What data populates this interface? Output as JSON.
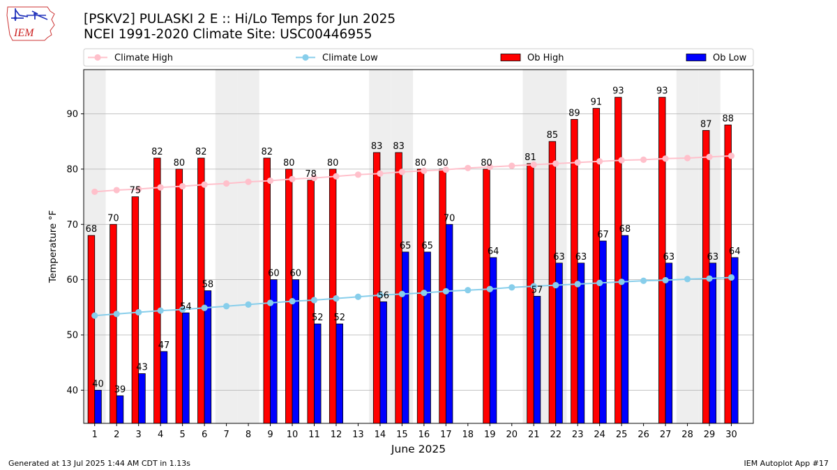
{
  "header": {
    "title_line1": "[PSKV2] PULASKI 2 E :: Hi/Lo Temps for Jun 2025",
    "title_line2": "NCEI 1991-2020 Climate Site: USC00446955"
  },
  "logo": {
    "text": "IEM",
    "icon": "iem-iowa-logo"
  },
  "footer": {
    "left": "Generated at 13 Jul 2025 1:44 AM CDT in 1.13s",
    "right": "IEM Autoplot App #17"
  },
  "colors": {
    "ob_high": "#ff0000",
    "ob_low": "#0000ff",
    "climate_high": "#ffc0cb",
    "climate_low": "#87ceeb",
    "weekend_shade": "#eeeeee",
    "grid": "#b0b0b0"
  },
  "chart_data": {
    "type": "bar",
    "xlabel": "June 2025",
    "ylabel": "Temperature °F",
    "ylim": [
      34,
      98
    ],
    "yticks": [
      40,
      50,
      60,
      70,
      80,
      90
    ],
    "grid": "horizontal",
    "legend_position": "top",
    "categories": [
      "1",
      "2",
      "3",
      "4",
      "5",
      "6",
      "7",
      "8",
      "9",
      "10",
      "11",
      "12",
      "13",
      "14",
      "15",
      "16",
      "17",
      "18",
      "19",
      "20",
      "21",
      "22",
      "23",
      "24",
      "25",
      "26",
      "27",
      "28",
      "29",
      "30"
    ],
    "shaded_days": [
      1,
      7,
      8,
      14,
      15,
      21,
      22,
      28,
      29
    ],
    "series": [
      {
        "name": "Climate High",
        "kind": "line",
        "values": [
          75.9,
          76.2,
          76.4,
          76.7,
          76.9,
          77.2,
          77.4,
          77.7,
          77.9,
          78.2,
          78.4,
          78.7,
          79.0,
          79.2,
          79.5,
          79.7,
          79.9,
          80.2,
          80.4,
          80.6,
          80.8,
          81.0,
          81.2,
          81.4,
          81.6,
          81.7,
          81.9,
          82.0,
          82.2,
          82.4
        ]
      },
      {
        "name": "Climate Low",
        "kind": "line",
        "values": [
          53.5,
          53.8,
          54.1,
          54.4,
          54.6,
          54.9,
          55.2,
          55.5,
          55.8,
          56.1,
          56.3,
          56.6,
          56.9,
          57.2,
          57.4,
          57.6,
          57.9,
          58.1,
          58.3,
          58.6,
          58.8,
          59.0,
          59.2,
          59.4,
          59.6,
          59.8,
          59.9,
          60.1,
          60.2,
          60.4
        ]
      },
      {
        "name": "Ob High",
        "kind": "bar",
        "values": [
          68,
          70,
          75,
          82,
          80,
          82,
          null,
          null,
          82,
          80,
          78,
          80,
          null,
          83,
          83,
          80,
          80,
          null,
          80,
          null,
          81,
          85,
          89,
          91,
          93,
          null,
          93,
          null,
          87,
          88
        ]
      },
      {
        "name": "Ob Low",
        "kind": "bar",
        "values": [
          40,
          39,
          43,
          47,
          54,
          58,
          null,
          null,
          60,
          60,
          52,
          52,
          null,
          56,
          65,
          65,
          70,
          null,
          64,
          null,
          57,
          63,
          63,
          67,
          68,
          null,
          63,
          null,
          63,
          64
        ]
      }
    ]
  }
}
